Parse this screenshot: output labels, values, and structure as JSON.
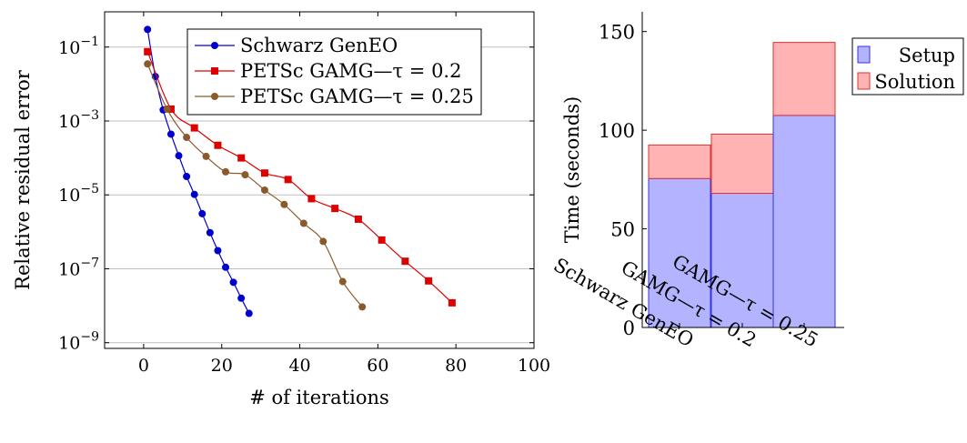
{
  "chart_data": [
    {
      "type": "line",
      "title": "",
      "xlabel": "# of iterations",
      "ylabel": "Relative residual error",
      "xlim": [
        -10,
        100
      ],
      "ylim": [
        7e-10,
        0.9
      ],
      "yscale": "log",
      "grid": "horizontal",
      "legend": "top-right",
      "xticks": [
        0,
        20,
        40,
        60,
        80,
        100
      ],
      "xtick_labels": [
        "0",
        "20",
        "40",
        "60",
        "80",
        "100"
      ],
      "yticks": [
        0.1,
        0.001,
        1e-05,
        1e-07,
        1e-09
      ],
      "ytick_labels": [
        {
          "base": "10",
          "exp": "−1"
        },
        {
          "base": "10",
          "exp": "−3"
        },
        {
          "base": "10",
          "exp": "−5"
        },
        {
          "base": "10",
          "exp": "−7"
        },
        {
          "base": "10",
          "exp": "−9"
        }
      ],
      "series": [
        {
          "name": "Schwarz GenEO",
          "color": "#0000cc",
          "marker": "circle",
          "x": [
            1,
            3,
            5,
            7,
            9,
            11,
            13,
            15,
            17,
            19,
            21,
            23,
            25,
            27
          ],
          "y": [
            0.3,
            0.016,
            0.002,
            0.00044,
            0.000115,
            3.15e-05,
            1.03e-05,
            3.1e-06,
            9.5e-07,
            3.1e-07,
            1.1e-07,
            4.3e-08,
            1.6e-08,
            6.2e-09
          ]
        },
        {
          "name": "PETSc GAMG—τ = 0.2",
          "color": "#dd0000",
          "marker": "square",
          "x": [
            1,
            7,
            13,
            19,
            25,
            31,
            37,
            43,
            49,
            55,
            61,
            67,
            73,
            79
          ],
          "y": [
            0.075,
            0.0021,
            0.00065,
            0.00022,
            0.0001,
            3.9e-05,
            2.6e-05,
            7.9e-06,
            4.3e-06,
            2.2e-06,
            6e-07,
            1.6e-07,
            4.7e-08,
            1.2e-08
          ]
        },
        {
          "name": "PETSc GAMG—τ = 0.25",
          "color": "#8b5a2b",
          "marker": "circle",
          "x": [
            1,
            6,
            11,
            16,
            21,
            26,
            31,
            36,
            41,
            46,
            51,
            56
          ],
          "y": [
            0.035,
            0.0021,
            0.00036,
            0.00011,
            4.2e-05,
            3.5e-05,
            1.35e-05,
            5.5e-06,
            1.7e-06,
            5.5e-07,
            4.5e-08,
            9.3e-09
          ]
        }
      ]
    },
    {
      "type": "bar",
      "stacked": true,
      "title": "",
      "xlabel": "",
      "ylabel": "Time (seconds)",
      "ylim": [
        0,
        160
      ],
      "yticks": [
        0,
        50,
        100,
        150
      ],
      "ytick_labels": [
        "0",
        "50",
        "100",
        "150"
      ],
      "legend": "top-right",
      "categories": [
        "Schwarz GenEO",
        "GAMG—τ = 0.2",
        "GAMG—τ = 0.25"
      ],
      "series": [
        {
          "name": "Setup",
          "fill": "#b3b3ff",
          "stroke": "#3333dd",
          "values": [
            75.5,
            68,
            107.5
          ]
        },
        {
          "name": "Solution",
          "fill": "#ffb3b3",
          "stroke": "#dd3333",
          "values": [
            17,
            30,
            37
          ]
        }
      ]
    }
  ]
}
